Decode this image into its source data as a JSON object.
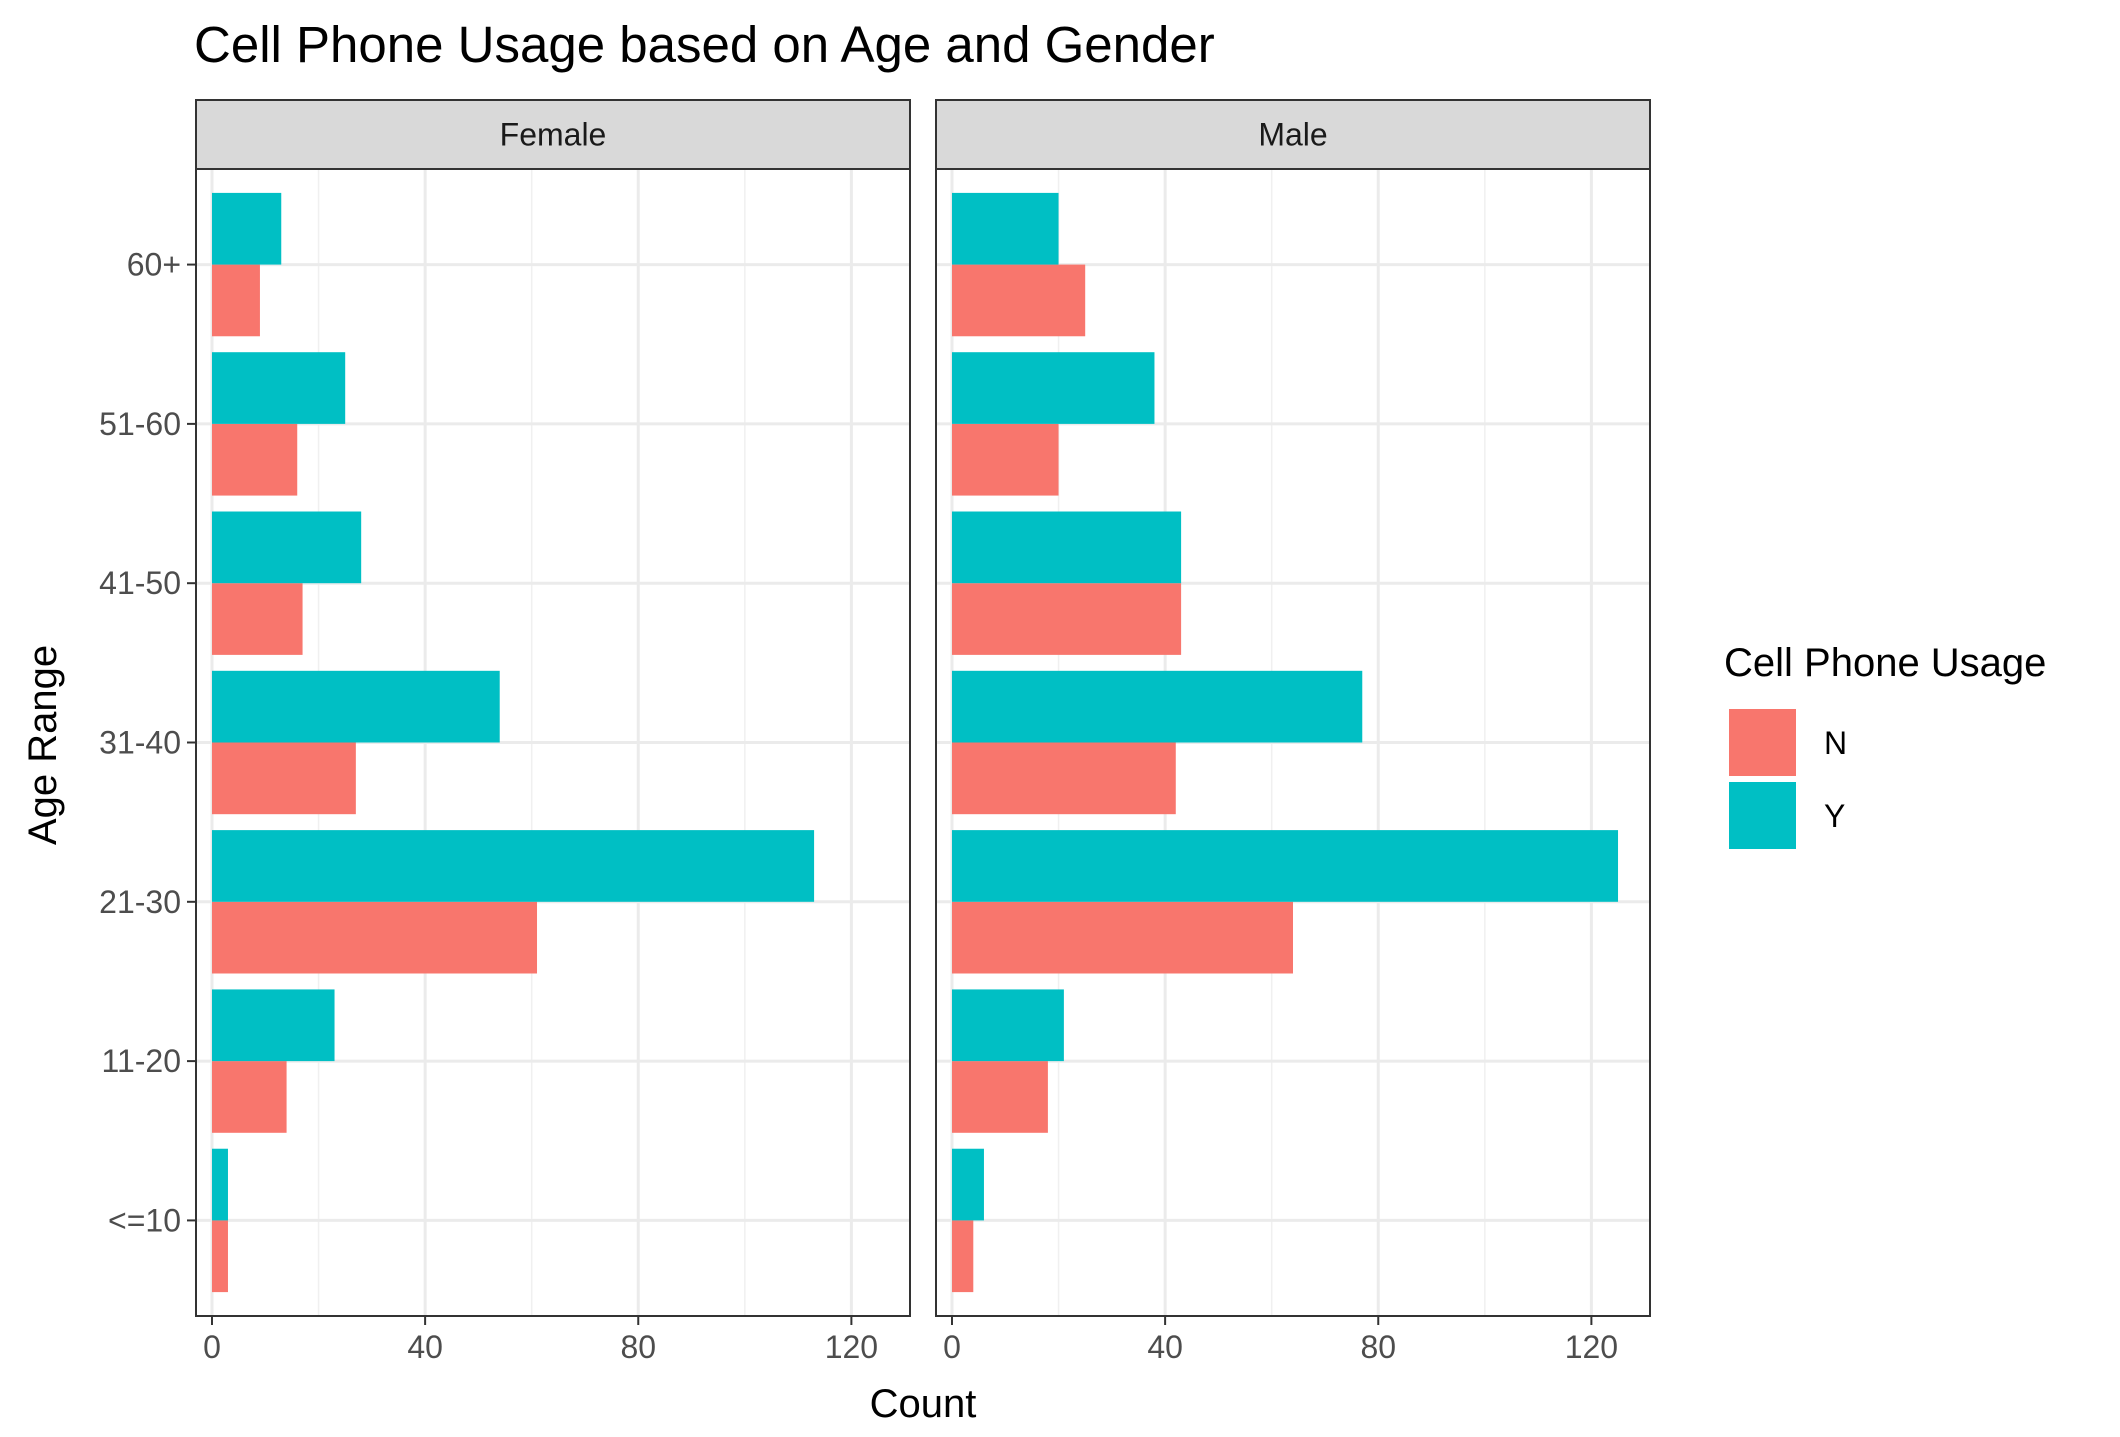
{
  "chart_data": {
    "type": "bar",
    "orientation": "horizontal",
    "title": "Cell Phone Usage based on Age and Gender",
    "xlabel": "Count",
    "ylabel": "Age Range",
    "xlim": [
      -3,
      131
    ],
    "x_ticks": [
      "0",
      "40",
      "80",
      "120"
    ],
    "x_tick_values": [
      0,
      40,
      80,
      120
    ],
    "categories": [
      "<=10",
      "11-20",
      "21-30",
      "31-40",
      "41-50",
      "51-60",
      "60+"
    ],
    "grid": true,
    "legend": {
      "title": "Cell Phone Usage",
      "position": "right",
      "entries": [
        {
          "label": "N",
          "color": "#F8766D"
        },
        {
          "label": "Y",
          "color": "#00BFC4"
        }
      ]
    },
    "facets": [
      {
        "name": "Female",
        "series": [
          {
            "name": "N",
            "color": "#F8766D",
            "values": [
              3,
              14,
              61,
              27,
              17,
              16,
              9
            ]
          },
          {
            "name": "Y",
            "color": "#00BFC4",
            "values": [
              3,
              23,
              113,
              54,
              28,
              25,
              13
            ]
          }
        ]
      },
      {
        "name": "Male",
        "series": [
          {
            "name": "N",
            "color": "#F8766D",
            "values": [
              4,
              18,
              64,
              42,
              43,
              20,
              25
            ]
          },
          {
            "name": "Y",
            "color": "#00BFC4",
            "values": [
              6,
              21,
              125,
              77,
              43,
              38,
              20
            ]
          }
        ]
      }
    ]
  }
}
